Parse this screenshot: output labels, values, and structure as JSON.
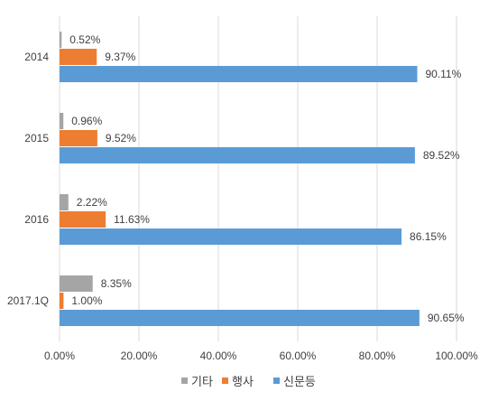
{
  "chart_data": {
    "type": "bar",
    "orientation": "horizontal",
    "categories": [
      "2014",
      "2015",
      "2016",
      "2017.1Q"
    ],
    "series": [
      {
        "name": "기타",
        "color": "#A5A5A5",
        "values": [
          0.52,
          0.96,
          2.22,
          8.35
        ],
        "labels": [
          "0.52%",
          "0.96%",
          "2.22%",
          "8.35%"
        ]
      },
      {
        "name": "행사",
        "color": "#ED7D31",
        "values": [
          9.37,
          9.52,
          11.63,
          1.0
        ],
        "labels": [
          "9.37%",
          "9.52%",
          "11.63%",
          "1.00%"
        ]
      },
      {
        "name": "신문등",
        "color": "#5B9BD5",
        "values": [
          90.11,
          89.52,
          86.15,
          90.65
        ],
        "labels": [
          "90.11%",
          "89.52%",
          "86.15%",
          "90.65%"
        ]
      }
    ],
    "x_ticks": [
      "0.00%",
      "20.00%",
      "40.00%",
      "60.00%",
      "80.00%",
      "100.00%"
    ],
    "xlim": [
      0,
      100
    ],
    "grid": true,
    "legend_position": "bottom"
  }
}
